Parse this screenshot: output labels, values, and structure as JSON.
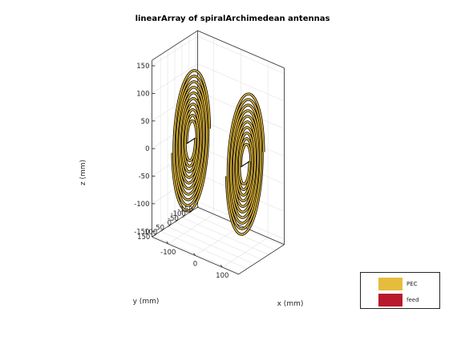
{
  "chart_data": {
    "type": "3d-geometry",
    "title": "linearArray of spiralArchimedean antennas",
    "xlabel": "x (mm)",
    "ylabel": "y (mm)",
    "zlabel": "z (mm)",
    "x_ticks": [
      "-100",
      "0",
      "100"
    ],
    "y_ticks": [
      "150",
      "100",
      "50",
      "0",
      "-50",
      "-100",
      "-150"
    ],
    "z_ticks": [
      "150",
      "100",
      "50",
      "0",
      "-50",
      "-100",
      "-150"
    ],
    "xlim": [
      -160,
      160
    ],
    "ylim": [
      -160,
      160
    ],
    "zlim": [
      -160,
      160
    ],
    "grid": true,
    "legend": {
      "placement": "bottom-right",
      "entries": [
        {
          "label": "PEC",
          "color": "#e6bc3c"
        },
        {
          "label": "feed",
          "color": "#b8192c"
        }
      ]
    },
    "elements": [
      {
        "name": "antenna-1",
        "x_center": -100,
        "y_center": 0,
        "z_center": 0,
        "turns": 5,
        "inner_radius": 30,
        "outer_radius": 130
      },
      {
        "name": "antenna-2",
        "x_center": 100,
        "y_center": 0,
        "z_center": 0,
        "turns": 5,
        "inner_radius": 30,
        "outer_radius": 130
      }
    ],
    "colors": {
      "metal": "#e6bc3c",
      "edge": "#000000",
      "feed": "#b8192c"
    }
  }
}
